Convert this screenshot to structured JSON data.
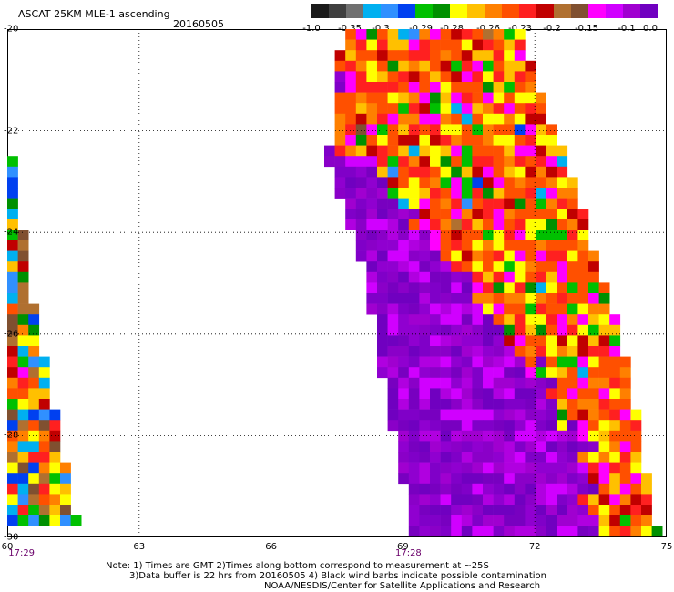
{
  "header": {
    "title": "ASCAT 25KM MLE-1 ascending",
    "date": "20160505"
  },
  "colorbar": {
    "colors": [
      "#1a1a1a",
      "#3f3f3f",
      "#707070",
      "#00b0f0",
      "#3090ff",
      "#0040f0",
      "#00c000",
      "#009000",
      "#ffff00",
      "#ffc000",
      "#ff8000",
      "#ff5000",
      "#ff2020",
      "#c00000",
      "#b07030",
      "#805030",
      "#ff00ff",
      "#d000ff",
      "#a000d0",
      "#7000c0"
    ],
    "tick_labels": [
      "-1.0",
      "-0.35",
      "-0.3",
      "-0.29",
      "-0.28",
      "-0.26",
      "-0.23",
      "-0.2",
      "-0.15",
      "-0.1",
      "0.0"
    ]
  },
  "axes": {
    "x_ticks": [
      "60",
      "63",
      "66",
      "69",
      "72",
      "75"
    ],
    "y_ticks": [
      "-20",
      "-22",
      "-24",
      "-26",
      "-28",
      "-30"
    ],
    "x_range": [
      60,
      75
    ],
    "y_range": [
      -20,
      -30
    ],
    "grid": "dotted"
  },
  "time_labels": [
    {
      "text": "17:29",
      "lon": 60.2
    },
    {
      "text": "17:28",
      "lon": 69.0
    }
  ],
  "notes": {
    "line1": "Note: 1) Times are GMT 2)Times along bottom correspond to measurement at ~25S",
    "line2": "3)Data buffer is 22 hrs from 20160505 4) Black wind barbs indicate possible contamination",
    "line3": "NOAA/NESDIS/Center for Satellite Applications and Research"
  },
  "swaths": [
    {
      "name": "west-swath",
      "polygon": [
        [
          60.0,
          -22.4
        ],
        [
          60.1,
          -22.4
        ],
        [
          60.6,
          -25.5
        ],
        [
          61.6,
          -29.8
        ],
        [
          60.0,
          -29.8
        ]
      ],
      "north_edge_value": "high",
      "south_edge_value": "mixed"
    },
    {
      "name": "east-swath",
      "polygon": [
        [
          67.7,
          -19.95
        ],
        [
          71.6,
          -19.95
        ],
        [
          72.9,
          -23.0
        ],
        [
          74.1,
          -26.5
        ],
        [
          74.8,
          -29.9
        ],
        [
          69.2,
          -29.9
        ],
        [
          68.1,
          -24.8
        ],
        [
          67.3,
          -22.7
        ],
        [
          67.4,
          -21.0
        ]
      ],
      "west_side_value": "near-zero",
      "east_side_value": "mixed"
    }
  ]
}
